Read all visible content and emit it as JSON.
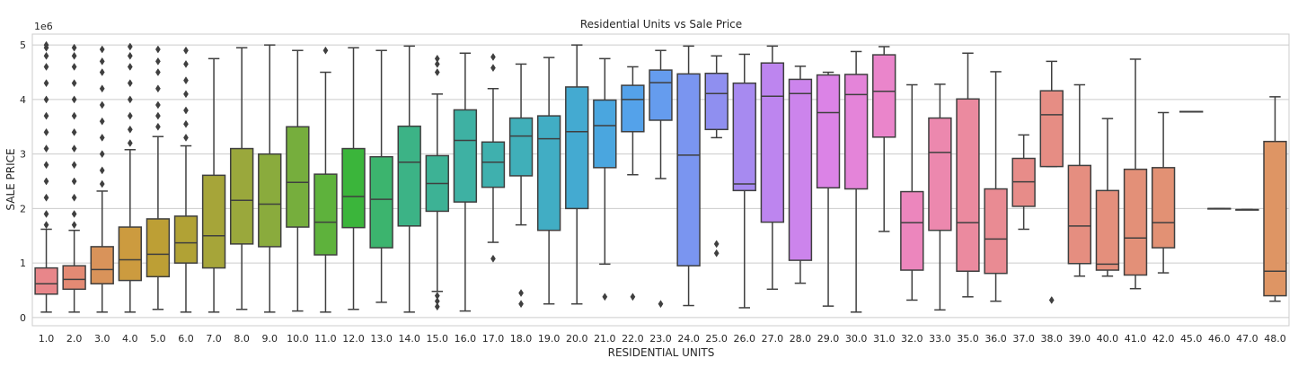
{
  "chart_data": {
    "type": "box",
    "title": "Residential Units vs Sale Price",
    "xlabel": "RESIDENTIAL UNITS",
    "ylabel": "SALE PRICE",
    "y_offset_label": "1e6",
    "ylim": [
      -0.15,
      5.2
    ],
    "yticks": [
      0,
      1,
      2,
      3,
      4,
      5
    ],
    "ytick_labels": [
      "0",
      "1",
      "2",
      "3",
      "4",
      "5"
    ],
    "grid": "horizontal",
    "categories": [
      "1.0",
      "2.0",
      "3.0",
      "4.0",
      "5.0",
      "6.0",
      "7.0",
      "8.0",
      "9.0",
      "10.0",
      "11.0",
      "12.0",
      "13.0",
      "14.0",
      "15.0",
      "16.0",
      "17.0",
      "18.0",
      "19.0",
      "20.0",
      "21.0",
      "22.0",
      "23.0",
      "24.0",
      "25.0",
      "26.0",
      "27.0",
      "28.0",
      "29.0",
      "30.0",
      "31.0",
      "32.0",
      "33.0",
      "35.0",
      "36.0",
      "37.0",
      "38.0",
      "39.0",
      "40.0",
      "41.0",
      "42.0",
      "45.0",
      "46.0",
      "47.0",
      "48.0"
    ],
    "colors": [
      "#e8868a",
      "#e38a74",
      "#d9935a",
      "#cc9b3f",
      "#bd9f35",
      "#b1a235",
      "#a6a539",
      "#9aa83c",
      "#8aab3d",
      "#76ae3d",
      "#5eb23c",
      "#3bb53b",
      "#3cb46e",
      "#3cb386",
      "#3db295",
      "#3eb1a3",
      "#3fb0ae",
      "#40afb9",
      "#41adc4",
      "#44aad1",
      "#4aa6df",
      "#54a2ea",
      "#659cee",
      "#7a95f0",
      "#8f8ff0",
      "#a78af0",
      "#bd85ef",
      "#cc84ec",
      "#db83e6",
      "#e484d9",
      "#ea85cb",
      "#ec86bd",
      "#ec88ae",
      "#eb8a9f",
      "#e98b93",
      "#e78c89",
      "#e68d84",
      "#e58e80",
      "#e48f7c",
      "#e39078",
      "#e29174",
      "#e19270",
      "#e0936c",
      "#df9468",
      "#de9564"
    ],
    "series": [
      {
        "category": "1.0",
        "whislo": 0.1,
        "q1": 0.43,
        "med": 0.62,
        "q3": 0.91,
        "whishi": 1.62,
        "fliers": [
          1.7,
          1.9,
          2.2,
          2.5,
          2.8,
          3.1,
          3.4,
          3.7,
          4.0,
          4.3,
          4.6,
          4.8,
          4.95,
          5.0
        ]
      },
      {
        "category": "2.0",
        "whislo": 0.1,
        "q1": 0.52,
        "med": 0.7,
        "q3": 0.95,
        "whishi": 1.6,
        "fliers": [
          1.7,
          1.9,
          2.2,
          2.5,
          2.8,
          3.1,
          3.4,
          3.7,
          4.0,
          4.3,
          4.6,
          4.8,
          4.95
        ]
      },
      {
        "category": "3.0",
        "whislo": 0.1,
        "q1": 0.62,
        "med": 0.88,
        "q3": 1.3,
        "whishi": 2.32,
        "fliers": [
          2.45,
          2.7,
          3.0,
          3.3,
          3.6,
          3.9,
          4.2,
          4.5,
          4.7,
          4.92
        ]
      },
      {
        "category": "4.0",
        "whislo": 0.1,
        "q1": 0.68,
        "med": 1.06,
        "q3": 1.66,
        "whishi": 3.08,
        "fliers": [
          3.2,
          3.45,
          3.7,
          4.0,
          4.3,
          4.6,
          4.8,
          4.97
        ]
      },
      {
        "category": "5.0",
        "whislo": 0.15,
        "q1": 0.75,
        "med": 1.16,
        "q3": 1.81,
        "whishi": 3.32,
        "fliers": [
          3.5,
          3.7,
          3.9,
          4.2,
          4.5,
          4.7,
          4.92
        ]
      },
      {
        "category": "6.0",
        "whislo": 0.1,
        "q1": 1.0,
        "med": 1.37,
        "q3": 1.86,
        "whishi": 3.15,
        "fliers": [
          3.3,
          3.55,
          3.8,
          4.1,
          4.35,
          4.65,
          4.9
        ]
      },
      {
        "category": "7.0",
        "whislo": 0.1,
        "q1": 0.91,
        "med": 1.5,
        "q3": 2.61,
        "whishi": 4.75,
        "fliers": []
      },
      {
        "category": "8.0",
        "whislo": 0.15,
        "q1": 1.35,
        "med": 2.15,
        "q3": 3.1,
        "whishi": 4.95,
        "fliers": []
      },
      {
        "category": "9.0",
        "whislo": 0.1,
        "q1": 1.3,
        "med": 2.08,
        "q3": 3.0,
        "whishi": 5.0,
        "fliers": []
      },
      {
        "category": "10.0",
        "whislo": 0.12,
        "q1": 1.66,
        "med": 2.48,
        "q3": 3.5,
        "whishi": 4.9,
        "fliers": []
      },
      {
        "category": "11.0",
        "whislo": 0.1,
        "q1": 1.15,
        "med": 1.75,
        "q3": 2.63,
        "whishi": 4.5,
        "fliers": [
          4.9
        ]
      },
      {
        "category": "12.0",
        "whislo": 0.15,
        "q1": 1.65,
        "med": 2.22,
        "q3": 3.1,
        "whishi": 4.95,
        "fliers": []
      },
      {
        "category": "13.0",
        "whislo": 0.28,
        "q1": 1.28,
        "med": 2.17,
        "q3": 2.95,
        "whishi": 4.9,
        "fliers": []
      },
      {
        "category": "14.0",
        "whislo": 0.1,
        "q1": 1.68,
        "med": 2.85,
        "q3": 3.51,
        "whishi": 4.98,
        "fliers": []
      },
      {
        "category": "15.0",
        "whislo": 0.48,
        "q1": 1.95,
        "med": 2.46,
        "q3": 2.97,
        "whishi": 4.1,
        "fliers": [
          0.2,
          0.3,
          0.4,
          4.5,
          4.65,
          4.75
        ]
      },
      {
        "category": "16.0",
        "whislo": 0.12,
        "q1": 2.12,
        "med": 3.25,
        "q3": 3.81,
        "whishi": 4.85,
        "fliers": []
      },
      {
        "category": "17.0",
        "whislo": 1.38,
        "q1": 2.39,
        "med": 2.85,
        "q3": 3.22,
        "whishi": 4.2,
        "fliers": [
          1.08,
          4.58,
          4.78
        ]
      },
      {
        "category": "18.0",
        "whislo": 1.7,
        "q1": 2.6,
        "med": 3.33,
        "q3": 3.66,
        "whishi": 4.65,
        "fliers": [
          0.25,
          0.45
        ]
      },
      {
        "category": "19.0",
        "whislo": 0.25,
        "q1": 1.6,
        "med": 3.28,
        "q3": 3.7,
        "whishi": 4.77,
        "fliers": []
      },
      {
        "category": "20.0",
        "whislo": 0.25,
        "q1": 2.0,
        "med": 3.41,
        "q3": 4.23,
        "whishi": 5.0,
        "fliers": []
      },
      {
        "category": "21.0",
        "whislo": 0.98,
        "q1": 2.75,
        "med": 3.52,
        "q3": 3.99,
        "whishi": 4.75,
        "fliers": [
          0.38
        ]
      },
      {
        "category": "22.0",
        "whislo": 2.62,
        "q1": 3.41,
        "med": 4.0,
        "q3": 4.26,
        "whishi": 4.6,
        "fliers": [
          0.38
        ]
      },
      {
        "category": "23.0",
        "whislo": 2.55,
        "q1": 3.62,
        "med": 4.31,
        "q3": 4.54,
        "whishi": 4.9,
        "fliers": [
          0.25
        ]
      },
      {
        "category": "24.0",
        "whislo": 0.22,
        "q1": 0.95,
        "med": 2.98,
        "q3": 4.47,
        "whishi": 4.98,
        "fliers": []
      },
      {
        "category": "25.0",
        "whislo": 3.3,
        "q1": 3.45,
        "med": 4.11,
        "q3": 4.48,
        "whishi": 4.8,
        "fliers": [
          1.18,
          1.35
        ]
      },
      {
        "category": "26.0",
        "whislo": 0.18,
        "q1": 2.33,
        "med": 2.45,
        "q3": 4.3,
        "whishi": 4.83,
        "fliers": []
      },
      {
        "category": "27.0",
        "whislo": 0.52,
        "q1": 1.75,
        "med": 4.06,
        "q3": 4.67,
        "whishi": 4.98,
        "fliers": []
      },
      {
        "category": "28.0",
        "whislo": 0.63,
        "q1": 1.05,
        "med": 4.11,
        "q3": 4.37,
        "whishi": 4.61,
        "fliers": []
      },
      {
        "category": "29.0",
        "whislo": 0.21,
        "q1": 2.38,
        "med": 3.76,
        "q3": 4.45,
        "whishi": 4.5,
        "fliers": []
      },
      {
        "category": "30.0",
        "whislo": 0.1,
        "q1": 2.36,
        "med": 4.09,
        "q3": 4.46,
        "whishi": 4.88,
        "fliers": []
      },
      {
        "category": "31.0",
        "whislo": 1.58,
        "q1": 3.31,
        "med": 4.15,
        "q3": 4.82,
        "whishi": 4.97,
        "fliers": []
      },
      {
        "category": "32.0",
        "whislo": 0.32,
        "q1": 0.87,
        "med": 1.74,
        "q3": 2.31,
        "whishi": 4.27,
        "fliers": []
      },
      {
        "category": "33.0",
        "whislo": 0.14,
        "q1": 1.6,
        "med": 3.03,
        "q3": 3.66,
        "whishi": 4.28,
        "fliers": []
      },
      {
        "category": "35.0",
        "whislo": 0.38,
        "q1": 0.85,
        "med": 1.74,
        "q3": 4.01,
        "whishi": 4.85,
        "fliers": []
      },
      {
        "category": "36.0",
        "whislo": 0.3,
        "q1": 0.81,
        "med": 1.44,
        "q3": 2.36,
        "whishi": 4.51,
        "fliers": []
      },
      {
        "category": "37.0",
        "whislo": 1.62,
        "q1": 2.04,
        "med": 2.49,
        "q3": 2.92,
        "whishi": 3.35,
        "fliers": []
      },
      {
        "category": "38.0",
        "whislo": 2.77,
        "q1": 2.77,
        "med": 3.72,
        "q3": 4.16,
        "whishi": 4.7,
        "fliers": [
          0.32
        ]
      },
      {
        "category": "39.0",
        "whislo": 0.76,
        "q1": 0.99,
        "med": 1.68,
        "q3": 2.79,
        "whishi": 4.27,
        "fliers": []
      },
      {
        "category": "40.0",
        "whislo": 0.76,
        "q1": 0.87,
        "med": 0.98,
        "q3": 2.33,
        "whishi": 3.65,
        "fliers": []
      },
      {
        "category": "41.0",
        "whislo": 0.53,
        "q1": 0.78,
        "med": 1.46,
        "q3": 2.72,
        "whishi": 4.74,
        "fliers": []
      },
      {
        "category": "42.0",
        "whislo": 0.82,
        "q1": 1.28,
        "med": 1.74,
        "q3": 2.75,
        "whishi": 3.76,
        "fliers": []
      },
      {
        "category": "45.0",
        "whislo": 3.78,
        "q1": 3.78,
        "med": 3.78,
        "q3": 3.78,
        "whishi": 3.78,
        "fliers": []
      },
      {
        "category": "46.0",
        "whislo": 2.0,
        "q1": 2.0,
        "med": 2.0,
        "q3": 2.0,
        "whishi": 2.0,
        "fliers": []
      },
      {
        "category": "47.0",
        "whislo": 1.98,
        "q1": 1.98,
        "med": 1.98,
        "q3": 1.98,
        "whishi": 1.98,
        "fliers": []
      },
      {
        "category": "48.0",
        "whislo": 0.3,
        "q1": 0.4,
        "med": 0.85,
        "q3": 3.23,
        "whishi": 4.05,
        "fliers": []
      }
    ]
  }
}
